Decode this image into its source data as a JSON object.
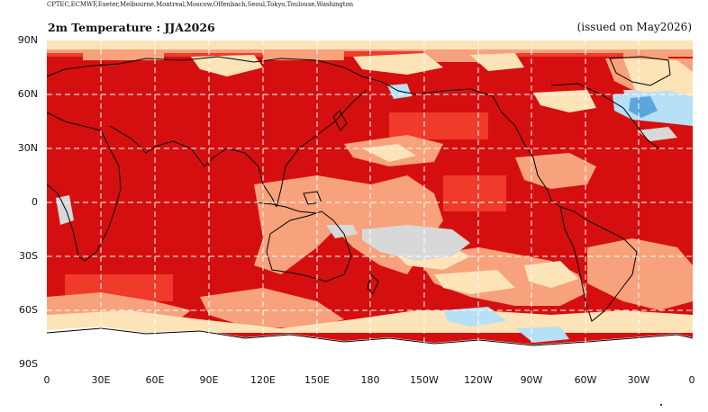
{
  "centres_line": "CPTEC,ECMWF,Exeter,Melbourne,Montreal,Moscow,Offenbach,Seoul,Tokyo,Toulouse,Washington",
  "title": "2m Temperature : JJA2026",
  "issued": "(issued on May2026)",
  "lat_labels": [
    "90N",
    "60N",
    "30N",
    "0",
    "30S",
    "60S",
    "90S"
  ],
  "lon_labels": [
    "0",
    "30E",
    "60E",
    "90E",
    "120E",
    "150E",
    "180",
    "150W",
    "120W",
    "90W",
    "60W",
    "30W",
    "0"
  ],
  "colors": {
    "very_warm": "#d50f0f",
    "warm": "#f03a2a",
    "moderately_warm": "#f7a27c",
    "slightly_warm": "#fde3b8",
    "neutral": "#d8d8d8",
    "slightly_cold": "#b6e0f4",
    "cold": "#5ba6dd",
    "no_signal": "#ffffff",
    "coastline": "#000000",
    "grid": "#ffffff"
  }
}
